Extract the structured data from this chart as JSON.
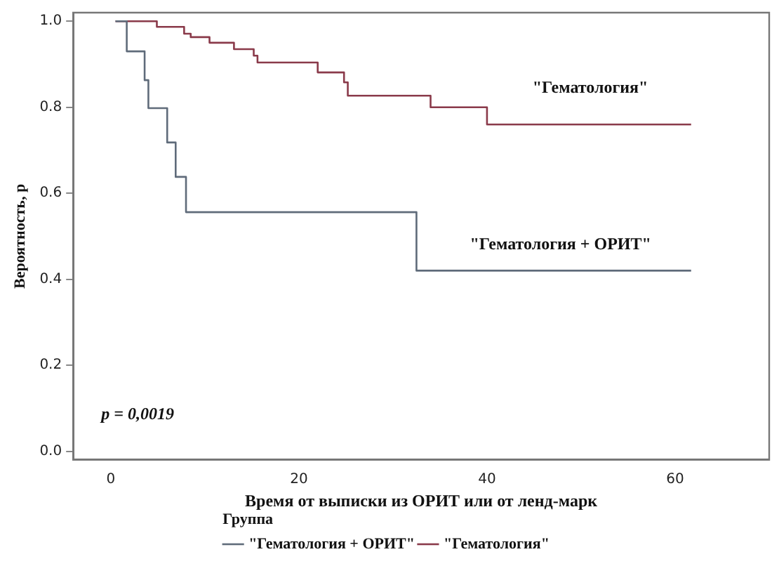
{
  "chart_data": {
    "type": "step",
    "xlabel": "Время от выписки из ОРИТ или от ленд-марк",
    "ylabel": "Вероятность, p",
    "legend_title": "Группа",
    "legend": "bottom",
    "grid": false,
    "marker": "none",
    "line_style": "solid",
    "xlim": [
      -4,
      70
    ],
    "xticks": [
      0,
      20,
      40,
      60
    ],
    "ylim": [
      -0.02,
      1.02
    ],
    "yticks": [
      {
        "value": 0,
        "label": "0.0"
      },
      {
        "value": 0.2,
        "label": "0.2"
      },
      {
        "value": 0.4,
        "label": "0.4"
      },
      {
        "value": 0.6,
        "label": "0.6"
      },
      {
        "value": 0.8,
        "label": "0.8"
      },
      {
        "value": 1,
        "label": "1.0"
      }
    ],
    "series": [
      {
        "name": "\"Гематология + ОРИТ\"",
        "color": "#5f6b7a",
        "x": [
          0.5,
          1.7,
          3.6,
          4,
          6,
          6.9,
          8,
          32.5,
          61.7
        ],
        "values": [
          1,
          0.93,
          0.863,
          0.798,
          0.718,
          0.638,
          0.556,
          0.42,
          0.42
        ]
      },
      {
        "name": "\"Гематология\"",
        "color": "#8a3a4a",
        "x": [
          0.5,
          4.9,
          7.8,
          8.5,
          10.5,
          13.1,
          15.2,
          15.6,
          22,
          24.8,
          25.2,
          34,
          40,
          61.7
        ],
        "values": [
          1,
          0.987,
          0.971,
          0.963,
          0.95,
          0.935,
          0.92,
          0.904,
          0.881,
          0.858,
          0.827,
          0.8,
          0.76,
          0.76
        ]
      }
    ],
    "annotations": [
      "\"Гематология\"",
      "\"Гематология + ОРИТ\"",
      "p = 0,0019"
    ]
  }
}
